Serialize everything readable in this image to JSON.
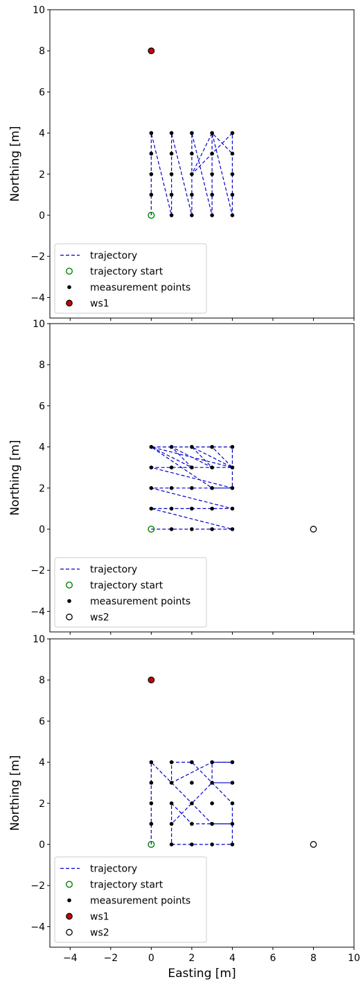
{
  "chart_data": [
    {
      "type": "scatter",
      "title": "",
      "xlabel": "",
      "ylabel": "Northing [m]",
      "xlim": [
        -5,
        10
      ],
      "ylim": [
        -5,
        10
      ],
      "xticks": [
        -4,
        -2,
        0,
        2,
        4,
        6,
        8,
        10
      ],
      "yticks": [
        -4,
        -2,
        0,
        2,
        4,
        6,
        8,
        10
      ],
      "xtick_labels_visible": false,
      "grid": false,
      "legend_position": "lower-left",
      "legend": [
        "trajectory",
        "trajectory start",
        "measurement points",
        "ws1"
      ],
      "trajectory": [
        [
          0,
          0
        ],
        [
          0,
          1
        ],
        [
          0,
          2
        ],
        [
          0,
          3
        ],
        [
          0,
          4
        ],
        [
          1,
          0
        ],
        [
          1,
          1
        ],
        [
          1,
          2
        ],
        [
          1,
          3
        ],
        [
          1,
          4
        ],
        [
          2,
          0
        ],
        [
          2,
          1
        ],
        [
          2,
          2
        ],
        [
          2,
          3
        ],
        [
          2,
          4
        ],
        [
          3,
          0
        ],
        [
          3,
          1
        ],
        [
          3,
          2
        ],
        [
          3,
          3
        ],
        [
          3,
          4
        ],
        [
          4,
          0
        ],
        [
          4,
          1
        ],
        [
          4,
          2
        ],
        [
          4,
          3
        ],
        [
          4,
          4
        ],
        [
          3,
          3
        ],
        [
          2,
          2
        ],
        [
          3,
          4
        ],
        [
          4,
          3
        ]
      ],
      "trajectory_start": [
        0,
        0
      ],
      "measurement_points": [
        [
          0,
          1
        ],
        [
          0,
          2
        ],
        [
          0,
          3
        ],
        [
          0,
          4
        ],
        [
          1,
          0
        ],
        [
          1,
          1
        ],
        [
          1,
          2
        ],
        [
          1,
          3
        ],
        [
          1,
          4
        ],
        [
          2,
          0
        ],
        [
          2,
          1
        ],
        [
          2,
          2
        ],
        [
          2,
          3
        ],
        [
          2,
          4
        ],
        [
          3,
          0
        ],
        [
          3,
          1
        ],
        [
          3,
          2
        ],
        [
          3,
          3
        ],
        [
          3,
          4
        ],
        [
          4,
          0
        ],
        [
          4,
          1
        ],
        [
          4,
          2
        ],
        [
          4,
          3
        ],
        [
          4,
          4
        ]
      ],
      "ws1": [
        0,
        8
      ]
    },
    {
      "type": "scatter",
      "title": "",
      "xlabel": "",
      "ylabel": "Northing [m]",
      "xlim": [
        -5,
        10
      ],
      "ylim": [
        -5,
        10
      ],
      "xticks": [
        -4,
        -2,
        0,
        2,
        4,
        6,
        8,
        10
      ],
      "yticks": [
        -4,
        -2,
        0,
        2,
        4,
        6,
        8,
        10
      ],
      "xtick_labels_visible": false,
      "grid": false,
      "legend_position": "lower-left",
      "legend": [
        "trajectory",
        "trajectory start",
        "measurement points",
        "ws2"
      ],
      "trajectory": [
        [
          0,
          0
        ],
        [
          1,
          0
        ],
        [
          2,
          0
        ],
        [
          3,
          0
        ],
        [
          4,
          0
        ],
        [
          0,
          1
        ],
        [
          1,
          1
        ],
        [
          2,
          1
        ],
        [
          3,
          1
        ],
        [
          4,
          1
        ],
        [
          0,
          2
        ],
        [
          1,
          2
        ],
        [
          2,
          2
        ],
        [
          3,
          2
        ],
        [
          4,
          2
        ],
        [
          0,
          3
        ],
        [
          1,
          3
        ],
        [
          2,
          3
        ],
        [
          3,
          3
        ],
        [
          4,
          3
        ],
        [
          0,
          4
        ],
        [
          1,
          4
        ],
        [
          2,
          4
        ],
        [
          3,
          4
        ],
        [
          4,
          4
        ],
        [
          4,
          3
        ],
        [
          4,
          2
        ],
        [
          3,
          2
        ],
        [
          0,
          4
        ],
        [
          2,
          3
        ],
        [
          1,
          4
        ],
        [
          3,
          3
        ],
        [
          2,
          4
        ],
        [
          4,
          3
        ],
        [
          3,
          4
        ]
      ],
      "trajectory_start": [
        0,
        0
      ],
      "measurement_points": [
        [
          0,
          1
        ],
        [
          0,
          2
        ],
        [
          0,
          3
        ],
        [
          0,
          4
        ],
        [
          1,
          0
        ],
        [
          1,
          1
        ],
        [
          1,
          2
        ],
        [
          1,
          3
        ],
        [
          1,
          4
        ],
        [
          2,
          0
        ],
        [
          2,
          1
        ],
        [
          2,
          2
        ],
        [
          2,
          3
        ],
        [
          2,
          4
        ],
        [
          3,
          0
        ],
        [
          3,
          1
        ],
        [
          3,
          2
        ],
        [
          3,
          3
        ],
        [
          3,
          4
        ],
        [
          4,
          0
        ],
        [
          4,
          1
        ],
        [
          4,
          2
        ],
        [
          4,
          3
        ],
        [
          4,
          4
        ]
      ],
      "ws2": [
        8,
        0
      ]
    },
    {
      "type": "scatter",
      "title": "",
      "xlabel": "Easting [m]",
      "ylabel": "Northing [m]",
      "xlim": [
        -5,
        10
      ],
      "ylim": [
        -5,
        10
      ],
      "xticks": [
        -4,
        -2,
        0,
        2,
        4,
        6,
        8,
        10
      ],
      "yticks": [
        -4,
        -2,
        0,
        2,
        4,
        6,
        8,
        10
      ],
      "xtick_labels_visible": true,
      "grid": false,
      "legend_position": "lower-left",
      "legend": [
        "trajectory",
        "trajectory start",
        "measurement points",
        "ws1",
        "ws2"
      ],
      "trajectory": [
        [
          0,
          0
        ],
        [
          0,
          1
        ],
        [
          0,
          2
        ],
        [
          0,
          3
        ],
        [
          0,
          4
        ],
        [
          1,
          3
        ],
        [
          2,
          2
        ],
        [
          3,
          1
        ],
        [
          4,
          1
        ],
        [
          3,
          1
        ],
        [
          2,
          1
        ],
        [
          1,
          2
        ],
        [
          1,
          1
        ],
        [
          1,
          0
        ],
        [
          2,
          0
        ],
        [
          3,
          0
        ],
        [
          4,
          0
        ],
        [
          4,
          2
        ],
        [
          3,
          3
        ],
        [
          2,
          4
        ],
        [
          1,
          4
        ],
        [
          1,
          3
        ],
        [
          3,
          4
        ],
        [
          4,
          4
        ],
        [
          3,
          4
        ],
        [
          3,
          3
        ],
        [
          4,
          3
        ],
        [
          3,
          3
        ],
        [
          2,
          2
        ],
        [
          1,
          1
        ]
      ],
      "trajectory_start": [
        0,
        0
      ],
      "measurement_points": [
        [
          0,
          1
        ],
        [
          0,
          2
        ],
        [
          0,
          3
        ],
        [
          0,
          4
        ],
        [
          1,
          0
        ],
        [
          1,
          1
        ],
        [
          1,
          2
        ],
        [
          1,
          3
        ],
        [
          1,
          4
        ],
        [
          2,
          0
        ],
        [
          2,
          1
        ],
        [
          2,
          2
        ],
        [
          2,
          3
        ],
        [
          2,
          4
        ],
        [
          3,
          0
        ],
        [
          3,
          1
        ],
        [
          3,
          2
        ],
        [
          3,
          3
        ],
        [
          3,
          4
        ],
        [
          4,
          0
        ],
        [
          4,
          1
        ],
        [
          4,
          2
        ],
        [
          4,
          3
        ],
        [
          4,
          4
        ]
      ],
      "ws1": [
        0,
        8
      ],
      "ws2": [
        8,
        0
      ]
    }
  ],
  "colors": {
    "trajectory": "#0000cc",
    "trajectory_start": "#008000",
    "measurement_points": "#000000",
    "ws1_fill": "#cc0000",
    "ws2_fill": "#ffffff"
  }
}
